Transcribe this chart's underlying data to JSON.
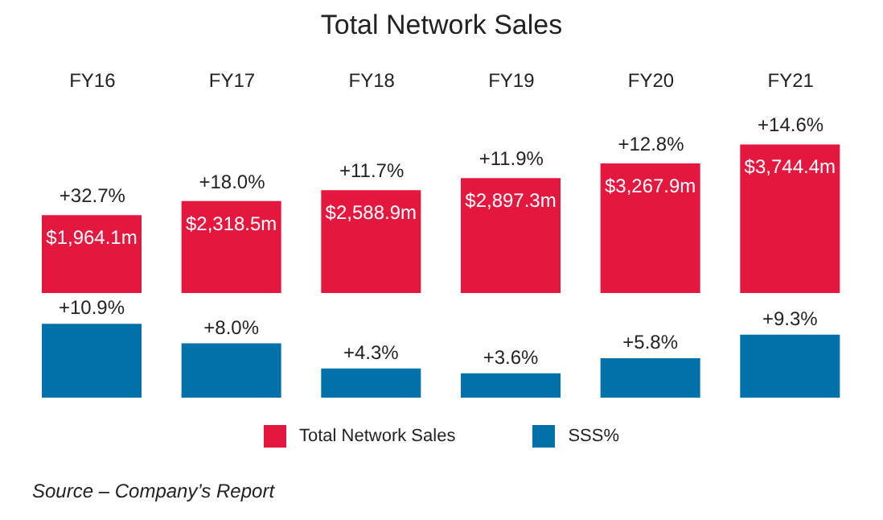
{
  "chart_data": [
    {
      "type": "bar",
      "title": "Total Network Sales",
      "categories": [
        "FY16",
        "FY17",
        "FY18",
        "FY19",
        "FY20",
        "FY21"
      ],
      "series": [
        {
          "name": "Total Network Sales",
          "color": "#e4173e",
          "values": [
            1964.1,
            2318.5,
            2588.9,
            2897.3,
            3267.9,
            3744.4
          ],
          "value_labels": [
            "$1,964.1m",
            "$2,318.5m",
            "$2,588.9m",
            "$2,897.3m",
            "$3,267.9m",
            "$3,744.4m"
          ]
        }
      ],
      "annotations": [
        {
          "text": "+32.7%",
          "x": "FY16",
          "y": 1964.1
        },
        {
          "text": "+18.0%",
          "x": "FY17",
          "y": 2318.5
        },
        {
          "text": "+11.7%",
          "x": "FY18",
          "y": 2588.9
        },
        {
          "text": "+11.9%",
          "x": "FY19",
          "y": 2897.3
        },
        {
          "text": "+12.8%",
          "x": "FY20",
          "y": 3267.9
        },
        {
          "text": "+14.6%",
          "x": "FY21",
          "y": 3744.4
        }
      ],
      "legend": "bottom"
    },
    {
      "type": "bar",
      "categories": [
        null,
        null,
        null,
        null,
        null,
        null
      ],
      "tick_labels": false,
      "series": [
        {
          "name": "SSS%",
          "color": "#0071a9",
          "values": [
            10.9,
            8.0,
            4.3,
            3.6,
            5.8,
            9.3
          ],
          "value_labels": [
            "+10.9%",
            "+8.0%",
            "+4.3%",
            "+3.6%",
            "+5.8%",
            "+9.3%"
          ]
        }
      ],
      "annotations": [
        "Source – Company’s Report"
      ],
      "legend": "bottom"
    }
  ]
}
